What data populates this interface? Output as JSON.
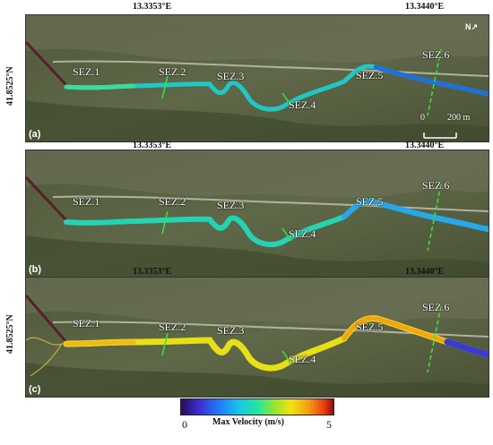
{
  "longitude_labels": [
    "13.3353°E",
    "13.3440°E"
  ],
  "latitude_label": "41.8525°N",
  "section_labels": [
    "SEZ.1",
    "SEZ.2",
    "SEZ.3",
    "SEZ.4",
    "SEZ.5",
    "SEZ.6"
  ],
  "panels": [
    {
      "letter": "(a)"
    },
    {
      "letter": "(b)"
    },
    {
      "letter": "(c)"
    }
  ],
  "scale_bar": {
    "start": "0",
    "end": "200 m"
  },
  "north_arrow": "N",
  "legend": {
    "title": "Max Velocity (m/s)",
    "min": "0",
    "max": "5",
    "colors": [
      "#2b0b5c",
      "#3b2fd0",
      "#1e7bff",
      "#17c5e8",
      "#22e6a0",
      "#9be52a",
      "#f2e311",
      "#f59a12",
      "#e83b12",
      "#8a0f0f"
    ]
  }
}
